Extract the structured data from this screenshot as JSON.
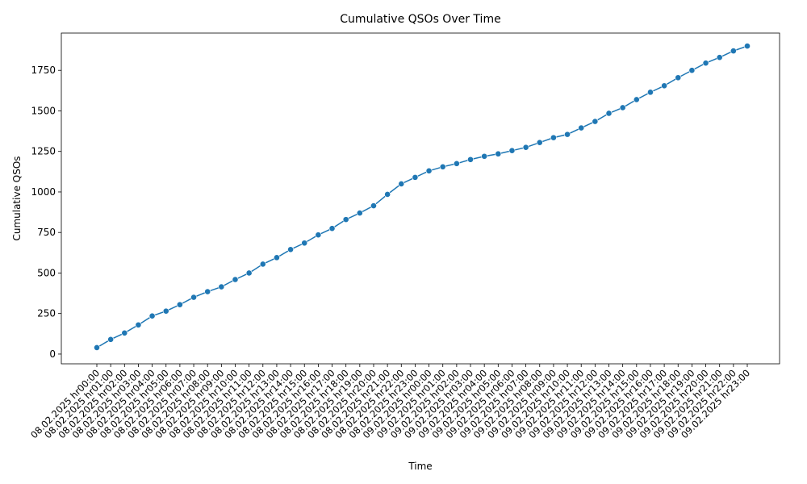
{
  "chart_data": {
    "type": "line",
    "title": "Cumulative QSOs Over Time",
    "xlabel": "Time",
    "ylabel": "Cumulative QSOs",
    "ylim": [
      -60,
      1980
    ],
    "yticks": [
      0,
      250,
      500,
      750,
      1000,
      1250,
      1500,
      1750
    ],
    "ytick_labels": [
      "0",
      "250",
      "500",
      "750",
      "1000",
      "1250",
      "1500",
      "1750"
    ],
    "grid": false,
    "marker": "circle",
    "color": "#1f77b4",
    "categories": [
      "08.02.2025 hr00:00",
      "08.02.2025 hr01:00",
      "08.02.2025 hr02:00",
      "08.02.2025 hr03:00",
      "08.02.2025 hr04:00",
      "08.02.2025 hr05:00",
      "08.02.2025 hr06:00",
      "08.02.2025 hr07:00",
      "08.02.2025 hr08:00",
      "08.02.2025 hr09:00",
      "08.02.2025 hr10:00",
      "08.02.2025 hr11:00",
      "08.02.2025 hr12:00",
      "08.02.2025 hr13:00",
      "08.02.2025 hr14:00",
      "08.02.2025 hr15:00",
      "08.02.2025 hr16:00",
      "08.02.2025 hr17:00",
      "08.02.2025 hr18:00",
      "08.02.2025 hr19:00",
      "08.02.2025 hr20:00",
      "08.02.2025 hr21:00",
      "08.02.2025 hr22:00",
      "08.02.2025 hr23:00",
      "09.02.2025 hr00:00",
      "09.02.2025 hr01:00",
      "09.02.2025 hr02:00",
      "09.02.2025 hr03:00",
      "09.02.2025 hr04:00",
      "09.02.2025 hr05:00",
      "09.02.2025 hr06:00",
      "09.02.2025 hr07:00",
      "09.02.2025 hr08:00",
      "09.02.2025 hr09:00",
      "09.02.2025 hr10:00",
      "09.02.2025 hr11:00",
      "09.02.2025 hr12:00",
      "09.02.2025 hr13:00",
      "09.02.2025 hr14:00",
      "09.02.2025 hr15:00",
      "09.02.2025 hr16:00",
      "09.02.2025 hr17:00",
      "09.02.2025 hr18:00",
      "09.02.2025 hr19:00",
      "09.02.2025 hr20:00",
      "09.02.2025 hr21:00",
      "09.02.2025 hr22:00",
      "09.02.2025 hr23:00"
    ],
    "series": [
      {
        "name": "Cumulative QSOs",
        "values": [
          40,
          90,
          130,
          180,
          235,
          265,
          305,
          350,
          385,
          415,
          460,
          500,
          555,
          595,
          645,
          685,
          735,
          775,
          830,
          870,
          915,
          985,
          1050,
          1090,
          1130,
          1155,
          1175,
          1200,
          1220,
          1235,
          1255,
          1275,
          1305,
          1335,
          1355,
          1395,
          1435,
          1485,
          1520,
          1570,
          1615,
          1655,
          1705,
          1750,
          1795,
          1830,
          1870,
          1900
        ]
      }
    ]
  }
}
